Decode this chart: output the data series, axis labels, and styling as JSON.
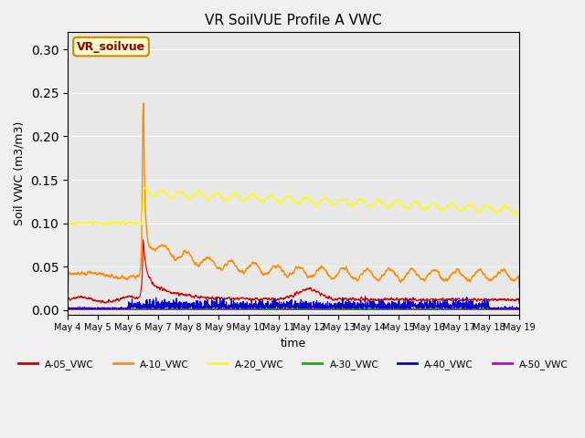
{
  "title": "VR SoilVUE Profile A VWC",
  "ylabel": "Soil VWC (m3/m3)",
  "xlabel": "time",
  "ylim": [
    -0.005,
    0.32
  ],
  "fig_bg_color": "#f0f0f0",
  "plot_bg_color": "#e8e8e8",
  "series": [
    {
      "label": "A-05_VWC",
      "color": "#cc0000",
      "lw": 0.8
    },
    {
      "label": "A-10_VWC",
      "color": "#ff8c00",
      "lw": 1.0
    },
    {
      "label": "A-20_VWC",
      "color": "#ffff00",
      "lw": 1.0
    },
    {
      "label": "A-30_VWC",
      "color": "#00bb00",
      "lw": 0.8
    },
    {
      "label": "A-40_VWC",
      "color": "#0000cc",
      "lw": 0.8
    },
    {
      "label": "A-50_VWC",
      "color": "#cc00cc",
      "lw": 0.8
    }
  ],
  "watermark_text": "VR_soilvue",
  "watermark_color": "#8b0000",
  "watermark_bg": "#ffffcc",
  "watermark_border": "#cc8800",
  "n_points": 2300,
  "legend_colors": [
    "#cc0000",
    "#ff8c00",
    "#ffff00",
    "#00bb00",
    "#0000cc",
    "#cc00cc"
  ]
}
